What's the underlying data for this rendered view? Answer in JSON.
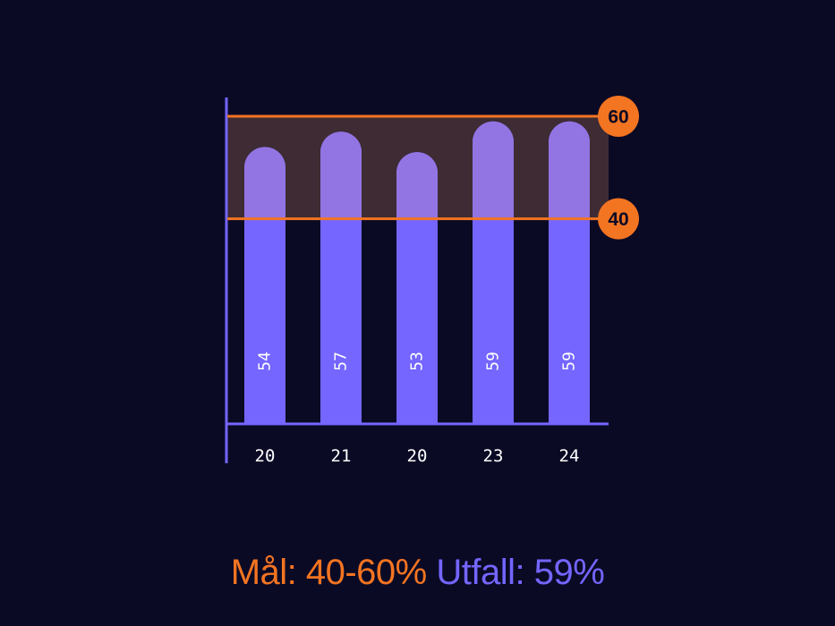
{
  "chart_data": {
    "type": "bar",
    "categories": [
      "20",
      "21",
      "20",
      "23",
      "24"
    ],
    "values": [
      54,
      57,
      53,
      59,
      59
    ],
    "ylim": [
      0,
      60
    ],
    "target_band": {
      "low": 40,
      "high": 60,
      "low_label": "40",
      "high_label": "60"
    },
    "grid": false
  },
  "footer": {
    "goal_text": "Mål: 40-60%",
    "result_text": "Utfall: 59%"
  },
  "colors": {
    "background": "#0a0a25",
    "bar": "#7466ff",
    "bar_in_band": "#9275e2",
    "target": "#f37421",
    "band_fill": "#3e2b34",
    "axis": "#7466ff"
  }
}
